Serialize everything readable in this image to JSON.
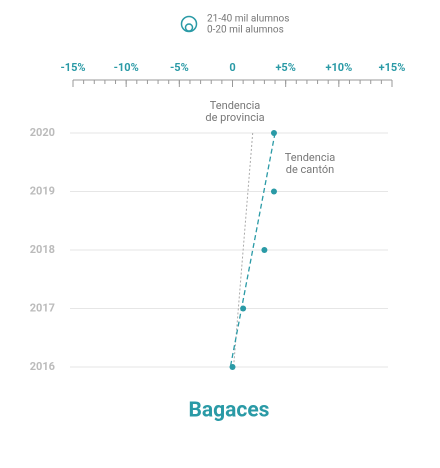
{
  "chart_data": {
    "type": "dot",
    "title": "Bagaces",
    "legend": [
      "21-40 mil alumnos",
      "0-20 mil alumnos"
    ],
    "categories": [
      "2020",
      "2019",
      "2018",
      "2017",
      "2016"
    ],
    "values": [
      3.9,
      3.9,
      3.0,
      1.0,
      0
    ],
    "color": "#2a9aa6",
    "xlim": [
      -15,
      15
    ],
    "xticks": [
      {
        "value": -15,
        "label": "-15%"
      },
      {
        "value": -10,
        "label": "-10%"
      },
      {
        "value": -5,
        "label": "-5%"
      },
      0,
      {
        "value": 5,
        "label": "+5%"
      },
      {
        "value": 10,
        "label": "+10%"
      },
      {
        "value": 15,
        "label": "+15%"
      }
    ],
    "grid": true,
    "trends": [
      {
        "name": [
          "Tendencia",
          "de provincia"
        ],
        "values": [
          1.9,
          0.1
        ],
        "color": "#aaaaaa",
        "style": "dotted"
      },
      {
        "name": [
          "Tendencia",
          "de cantón"
        ],
        "values": [
          4.0,
          -0.2
        ],
        "color": "#2a9aa6",
        "style": "dashed"
      }
    ]
  }
}
